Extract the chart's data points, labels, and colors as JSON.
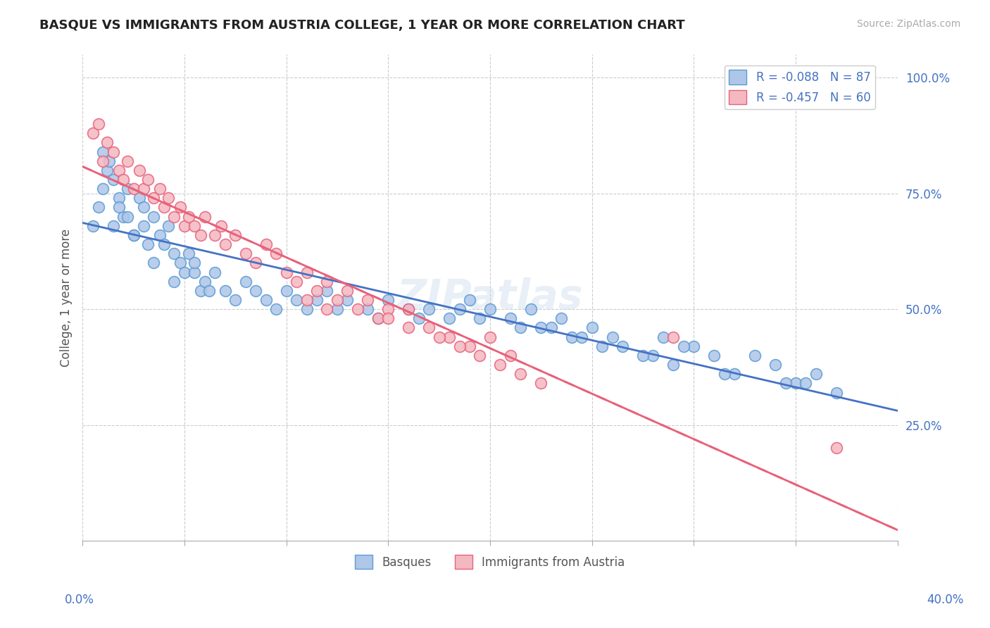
{
  "title": "BASQUE VS IMMIGRANTS FROM AUSTRIA COLLEGE, 1 YEAR OR MORE CORRELATION CHART",
  "source_text": "Source: ZipAtlas.com",
  "ylabel": "College, 1 year or more",
  "xlim": [
    0.0,
    0.4
  ],
  "ylim": [
    0.0,
    1.05
  ],
  "x_tick_vals": [
    0.0,
    0.05,
    0.1,
    0.15,
    0.2,
    0.25,
    0.3,
    0.35,
    0.4
  ],
  "x_label_vals": [
    0.0,
    0.4
  ],
  "x_label_texts": [
    "0.0%",
    "40.0%"
  ],
  "y_tick_vals": [
    0.25,
    0.5,
    0.75,
    1.0
  ],
  "y_tick_labels": [
    "25.0%",
    "50.0%",
    "75.0%",
    "100.0%"
  ],
  "basque_color": "#aec6e8",
  "basque_edge_color": "#5b9bd5",
  "austria_color": "#f4b8c1",
  "austria_edge_color": "#e8617a",
  "trend_blue": "#4472c4",
  "trend_pink": "#e8617a",
  "R_basque": -0.088,
  "N_basque": 87,
  "R_austria": -0.457,
  "N_austria": 60,
  "bottom_legend_1": "Basques",
  "bottom_legend_2": "Immigrants from Austria",
  "basque_x": [
    0.005,
    0.008,
    0.01,
    0.012,
    0.01,
    0.015,
    0.013,
    0.018,
    0.02,
    0.022,
    0.015,
    0.018,
    0.025,
    0.022,
    0.028,
    0.03,
    0.025,
    0.032,
    0.035,
    0.03,
    0.038,
    0.04,
    0.035,
    0.042,
    0.045,
    0.048,
    0.05,
    0.045,
    0.052,
    0.055,
    0.058,
    0.06,
    0.055,
    0.062,
    0.065,
    0.07,
    0.075,
    0.08,
    0.085,
    0.09,
    0.095,
    0.1,
    0.105,
    0.11,
    0.115,
    0.12,
    0.125,
    0.13,
    0.14,
    0.145,
    0.15,
    0.16,
    0.165,
    0.17,
    0.18,
    0.185,
    0.19,
    0.195,
    0.2,
    0.21,
    0.215,
    0.22,
    0.23,
    0.24,
    0.25,
    0.26,
    0.28,
    0.29,
    0.3,
    0.31,
    0.32,
    0.33,
    0.34,
    0.35,
    0.36,
    0.37,
    0.285,
    0.295,
    0.265,
    0.275,
    0.245,
    0.255,
    0.355,
    0.225,
    0.235,
    0.315,
    0.345
  ],
  "basque_y": [
    0.68,
    0.72,
    0.76,
    0.8,
    0.84,
    0.78,
    0.82,
    0.74,
    0.7,
    0.76,
    0.68,
    0.72,
    0.66,
    0.7,
    0.74,
    0.68,
    0.66,
    0.64,
    0.7,
    0.72,
    0.66,
    0.64,
    0.6,
    0.68,
    0.62,
    0.6,
    0.58,
    0.56,
    0.62,
    0.58,
    0.54,
    0.56,
    0.6,
    0.54,
    0.58,
    0.54,
    0.52,
    0.56,
    0.54,
    0.52,
    0.5,
    0.54,
    0.52,
    0.5,
    0.52,
    0.54,
    0.5,
    0.52,
    0.5,
    0.48,
    0.52,
    0.5,
    0.48,
    0.5,
    0.48,
    0.5,
    0.52,
    0.48,
    0.5,
    0.48,
    0.46,
    0.5,
    0.46,
    0.44,
    0.46,
    0.44,
    0.4,
    0.38,
    0.42,
    0.4,
    0.36,
    0.4,
    0.38,
    0.34,
    0.36,
    0.32,
    0.44,
    0.42,
    0.42,
    0.4,
    0.44,
    0.42,
    0.34,
    0.46,
    0.48,
    0.36,
    0.34
  ],
  "austria_x": [
    0.005,
    0.008,
    0.01,
    0.012,
    0.015,
    0.018,
    0.02,
    0.022,
    0.025,
    0.028,
    0.03,
    0.032,
    0.035,
    0.038,
    0.04,
    0.042,
    0.045,
    0.048,
    0.05,
    0.052,
    0.055,
    0.058,
    0.06,
    0.065,
    0.068,
    0.07,
    0.075,
    0.08,
    0.085,
    0.09,
    0.095,
    0.1,
    0.105,
    0.11,
    0.115,
    0.12,
    0.125,
    0.13,
    0.135,
    0.14,
    0.145,
    0.15,
    0.16,
    0.17,
    0.18,
    0.19,
    0.2,
    0.21,
    0.15,
    0.16,
    0.175,
    0.185,
    0.195,
    0.205,
    0.215,
    0.225,
    0.11,
    0.12,
    0.37,
    0.29
  ],
  "austria_y": [
    0.88,
    0.9,
    0.82,
    0.86,
    0.84,
    0.8,
    0.78,
    0.82,
    0.76,
    0.8,
    0.76,
    0.78,
    0.74,
    0.76,
    0.72,
    0.74,
    0.7,
    0.72,
    0.68,
    0.7,
    0.68,
    0.66,
    0.7,
    0.66,
    0.68,
    0.64,
    0.66,
    0.62,
    0.6,
    0.64,
    0.62,
    0.58,
    0.56,
    0.58,
    0.54,
    0.56,
    0.52,
    0.54,
    0.5,
    0.52,
    0.48,
    0.5,
    0.5,
    0.46,
    0.44,
    0.42,
    0.44,
    0.4,
    0.48,
    0.46,
    0.44,
    0.42,
    0.4,
    0.38,
    0.36,
    0.34,
    0.52,
    0.5,
    0.2,
    0.44
  ]
}
